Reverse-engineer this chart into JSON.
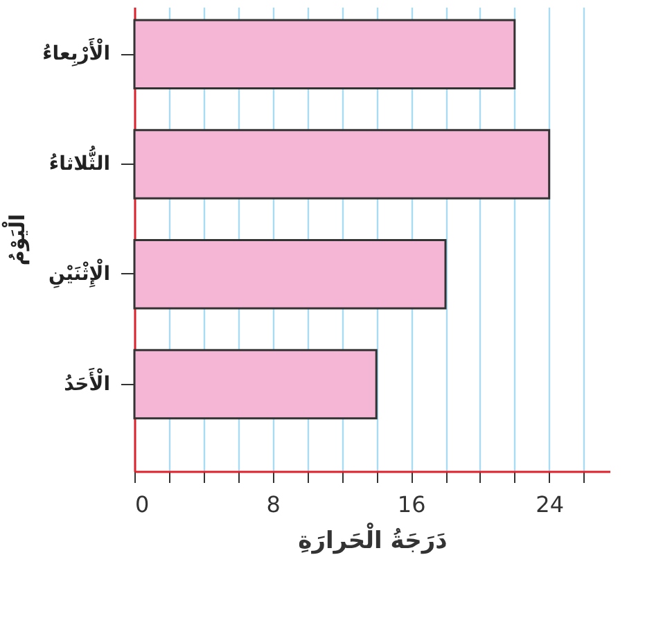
{
  "chart_data": {
    "type": "bar",
    "orientation": "horizontal",
    "categories": [
      "الْأَرْبِعاءُ",
      "الثُّلاثاءُ",
      "الْإِثْنَيْنِ",
      "الْأَحَدُ"
    ],
    "values": [
      22,
      24,
      18,
      14
    ],
    "color": "#f5b5d5",
    "xlabel": "دَرَجَةُ الْحَرارَةِ",
    "ylabel": "الْيَوْمُ",
    "xlim": [
      0,
      27.5
    ],
    "xticks": [
      0,
      {
        "value": 2,
        "label": null
      },
      {
        "value": 4,
        "label": null
      },
      {
        "value": 6,
        "label": null
      },
      8,
      {
        "value": 10,
        "label": null
      },
      {
        "value": 12,
        "label": null
      },
      {
        "value": 14,
        "label": null
      },
      16,
      {
        "value": 18,
        "label": null
      },
      {
        "value": 20,
        "label": null
      },
      {
        "value": 22,
        "label": null
      },
      24,
      {
        "value": 26,
        "label": null
      }
    ],
    "grid": "x"
  }
}
